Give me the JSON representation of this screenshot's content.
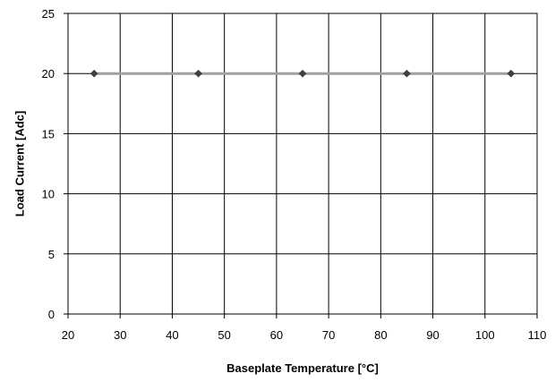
{
  "chart_data": {
    "type": "line",
    "xlabel": "Baseplate Temperature [°C]",
    "ylabel": "Load Current  [Adc]",
    "xlim": [
      20,
      110
    ],
    "ylim": [
      0,
      25
    ],
    "x_ticks": [
      20,
      30,
      40,
      50,
      60,
      70,
      80,
      90,
      100,
      110
    ],
    "y_ticks": [
      0,
      5,
      10,
      15,
      20,
      25
    ],
    "grid": true,
    "legend": "none",
    "series": [
      {
        "x": [
          25,
          45,
          65,
          85,
          105
        ],
        "y": [
          20,
          20,
          20,
          20,
          20
        ],
        "line_color": "#a0a0a0",
        "marker": "diamond",
        "marker_color": "#404040"
      }
    ]
  }
}
